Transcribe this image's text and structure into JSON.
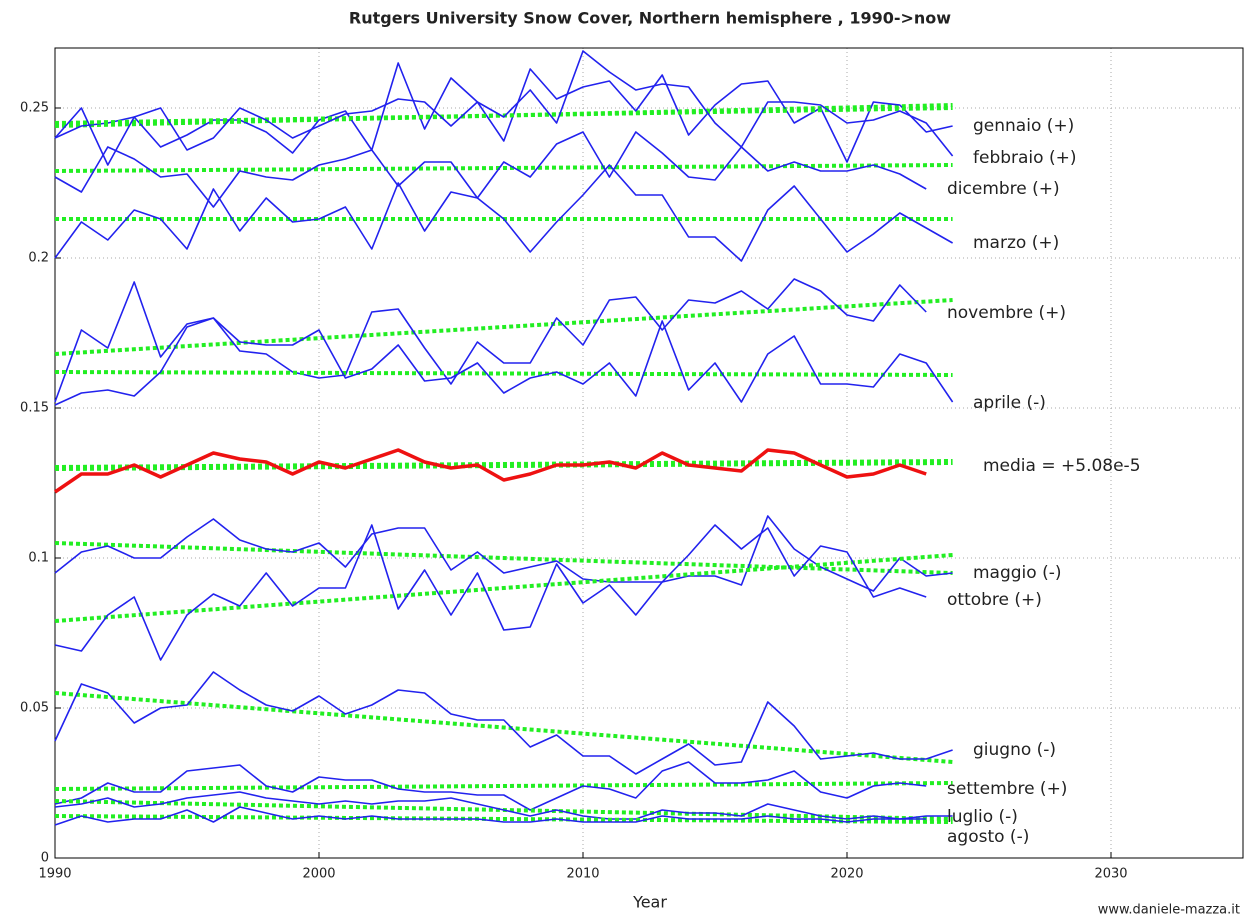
{
  "chart_data": {
    "type": "line",
    "title": "Rutgers University Snow Cover, Northern hemisphere , 1990->now",
    "x_label": "Year",
    "watermark": "www.daniele-mazza.it",
    "xlim": [
      1990,
      2035
    ],
    "ylim": [
      0,
      0.27
    ],
    "xticks": [
      1990,
      2000,
      2010,
      2020,
      2030
    ],
    "yticks": [
      0,
      0.05,
      0.1,
      0.15,
      0.2,
      0.25
    ],
    "grid": true,
    "trend_color": "#22ee22",
    "trend_x": [
      1990,
      2024
    ],
    "x": [
      1990,
      1991,
      1992,
      1993,
      1994,
      1995,
      1996,
      1997,
      1998,
      1999,
      2000,
      2001,
      2002,
      2003,
      2004,
      2005,
      2006,
      2007,
      2008,
      2009,
      2010,
      2011,
      2012,
      2013,
      2014,
      2015,
      2016,
      2017,
      2018,
      2019,
      2020,
      2021,
      2022,
      2023,
      2024
    ],
    "series": [
      {
        "name": "gennaio (+)",
        "color": "#2222ee",
        "trend": [
          0.244,
          0.251
        ],
        "values": [
          0.24,
          0.244,
          0.245,
          0.247,
          0.237,
          0.241,
          0.246,
          0.246,
          0.242,
          0.235,
          0.246,
          0.249,
          0.236,
          0.265,
          0.243,
          0.26,
          0.252,
          0.239,
          0.263,
          0.253,
          0.257,
          0.259,
          0.249,
          0.261,
          0.241,
          0.251,
          0.258,
          0.259,
          0.245,
          0.25,
          0.232,
          0.252,
          0.251,
          0.242,
          0.244
        ]
      },
      {
        "name": "febbraio (+)",
        "color": "#2222ee",
        "trend": [
          0.245,
          0.25
        ],
        "values": [
          0.24,
          0.25,
          0.231,
          0.247,
          0.25,
          0.236,
          0.24,
          0.25,
          0.246,
          0.24,
          0.244,
          0.248,
          0.249,
          0.253,
          0.252,
          0.244,
          0.252,
          0.247,
          0.256,
          0.245,
          0.269,
          0.262,
          0.256,
          0.258,
          0.257,
          0.245,
          0.237,
          0.252,
          0.252,
          0.251,
          0.245,
          0.246,
          0.249,
          0.245,
          0.234
        ]
      },
      {
        "name": "dicembre (+)",
        "color": "#2222ee",
        "trend": [
          0.229,
          0.231
        ],
        "values": [
          0.227,
          0.222,
          0.237,
          0.233,
          0.227,
          0.228,
          0.217,
          0.229,
          0.227,
          0.226,
          0.231,
          0.233,
          0.236,
          0.224,
          0.232,
          0.232,
          0.22,
          0.232,
          0.227,
          0.238,
          0.242,
          0.227,
          0.242,
          0.235,
          0.227,
          0.226,
          0.237,
          0.229,
          0.232,
          0.229,
          0.229,
          0.231,
          0.228,
          0.223,
          null
        ]
      },
      {
        "name": "marzo (+)",
        "color": "#2222ee",
        "trend": [
          0.213,
          0.213
        ],
        "values": [
          0.2,
          0.212,
          0.206,
          0.216,
          0.213,
          0.203,
          0.223,
          0.209,
          0.22,
          0.212,
          0.213,
          0.217,
          0.203,
          0.225,
          0.209,
          0.222,
          0.22,
          0.213,
          0.202,
          0.212,
          0.221,
          0.231,
          0.221,
          0.221,
          0.207,
          0.207,
          0.199,
          0.216,
          0.224,
          0.213,
          0.202,
          0.208,
          0.215,
          0.21,
          0.205
        ]
      },
      {
        "name": "novembre (+)",
        "color": "#2222ee",
        "trend": [
          0.168,
          0.186
        ],
        "values": [
          0.152,
          0.176,
          0.17,
          0.192,
          0.167,
          0.178,
          0.18,
          0.169,
          0.168,
          0.162,
          0.16,
          0.161,
          0.182,
          0.183,
          0.17,
          0.158,
          0.172,
          0.165,
          0.165,
          0.18,
          0.171,
          0.186,
          0.187,
          0.176,
          0.186,
          0.185,
          0.189,
          0.183,
          0.193,
          0.189,
          0.181,
          0.179,
          0.191,
          0.182,
          null
        ]
      },
      {
        "name": "aprile (-)",
        "color": "#2222ee",
        "trend": [
          0.162,
          0.161
        ],
        "values": [
          0.151,
          0.155,
          0.156,
          0.154,
          0.162,
          0.177,
          0.18,
          0.172,
          0.171,
          0.171,
          0.176,
          0.16,
          0.163,
          0.171,
          0.159,
          0.16,
          0.165,
          0.155,
          0.16,
          0.162,
          0.158,
          0.165,
          0.154,
          0.179,
          0.156,
          0.165,
          0.152,
          0.168,
          0.174,
          0.158,
          0.158,
          0.157,
          0.168,
          0.165,
          0.152
        ]
      },
      {
        "name": "media = +5.08e-5",
        "color": "#ee1111",
        "trend": [
          0.13,
          0.132
        ],
        "values": [
          0.122,
          0.128,
          0.128,
          0.131,
          0.127,
          0.131,
          0.135,
          0.133,
          0.132,
          0.128,
          0.132,
          0.13,
          0.133,
          0.136,
          0.132,
          0.13,
          0.131,
          0.126,
          0.128,
          0.131,
          0.131,
          0.132,
          0.13,
          0.135,
          0.131,
          0.13,
          0.129,
          0.136,
          0.135,
          0.131,
          0.127,
          0.128,
          0.131,
          0.128,
          null
        ]
      },
      {
        "name": "maggio (-)",
        "color": "#2222ee",
        "trend": [
          0.105,
          0.095
        ],
        "values": [
          0.095,
          0.102,
          0.104,
          0.1,
          0.1,
          0.107,
          0.113,
          0.106,
          0.103,
          0.102,
          0.105,
          0.097,
          0.108,
          0.11,
          0.11,
          0.096,
          0.102,
          0.095,
          0.097,
          0.099,
          0.093,
          0.092,
          0.092,
          0.092,
          0.094,
          0.094,
          0.091,
          0.114,
          0.103,
          0.097,
          0.093,
          0.089,
          0.1,
          0.094,
          0.095
        ]
      },
      {
        "name": "ottobre (+)",
        "color": "#2222ee",
        "trend": [
          0.079,
          0.101
        ],
        "values": [
          0.071,
          0.069,
          0.081,
          0.087,
          0.066,
          0.081,
          0.088,
          0.084,
          0.095,
          0.084,
          0.09,
          0.09,
          0.111,
          0.083,
          0.096,
          0.081,
          0.095,
          0.076,
          0.077,
          0.098,
          0.085,
          0.091,
          0.081,
          0.092,
          0.101,
          0.111,
          0.103,
          0.11,
          0.094,
          0.104,
          0.102,
          0.087,
          0.09,
          0.087,
          null
        ]
      },
      {
        "name": "giugno (-)",
        "color": "#2222ee",
        "trend": [
          0.055,
          0.032
        ],
        "values": [
          0.039,
          0.058,
          0.055,
          0.045,
          0.05,
          0.051,
          0.062,
          0.056,
          0.051,
          0.049,
          0.054,
          0.048,
          0.051,
          0.056,
          0.055,
          0.048,
          0.046,
          0.046,
          0.037,
          0.041,
          0.034,
          0.034,
          0.028,
          0.033,
          0.038,
          0.031,
          0.032,
          0.052,
          0.044,
          0.033,
          0.034,
          0.035,
          0.033,
          0.033,
          0.036
        ]
      },
      {
        "name": "settembre (+)",
        "color": "#2222ee",
        "trend": [
          0.023,
          0.025
        ],
        "values": [
          0.018,
          0.02,
          0.025,
          0.022,
          0.022,
          0.029,
          0.03,
          0.031,
          0.024,
          0.022,
          0.027,
          0.026,
          0.026,
          0.023,
          0.022,
          0.022,
          0.021,
          0.021,
          0.016,
          0.02,
          0.024,
          0.023,
          0.02,
          0.029,
          0.032,
          0.025,
          0.025,
          0.026,
          0.029,
          0.022,
          0.02,
          0.024,
          0.025,
          0.024,
          null
        ]
      },
      {
        "name": "luglio (-)",
        "color": "#2222ee",
        "trend": [
          0.019,
          0.013
        ],
        "values": [
          0.017,
          0.018,
          0.02,
          0.017,
          0.018,
          0.02,
          0.021,
          0.022,
          0.02,
          0.019,
          0.018,
          0.019,
          0.018,
          0.019,
          0.019,
          0.02,
          0.018,
          0.016,
          0.014,
          0.016,
          0.014,
          0.013,
          0.013,
          0.016,
          0.015,
          0.015,
          0.014,
          0.018,
          0.016,
          0.014,
          0.013,
          0.014,
          0.013,
          0.014,
          0.014
        ]
      },
      {
        "name": "agosto (-)",
        "color": "#2222ee",
        "trend": [
          0.014,
          0.012
        ],
        "values": [
          0.011,
          0.014,
          0.012,
          0.013,
          0.013,
          0.016,
          0.012,
          0.017,
          0.015,
          0.013,
          0.014,
          0.013,
          0.014,
          0.013,
          0.013,
          0.013,
          0.013,
          0.012,
          0.012,
          0.013,
          0.012,
          0.012,
          0.012,
          0.014,
          0.013,
          0.013,
          0.013,
          0.014,
          0.013,
          0.013,
          0.012,
          0.013,
          0.013,
          0.013,
          null
        ]
      }
    ]
  }
}
